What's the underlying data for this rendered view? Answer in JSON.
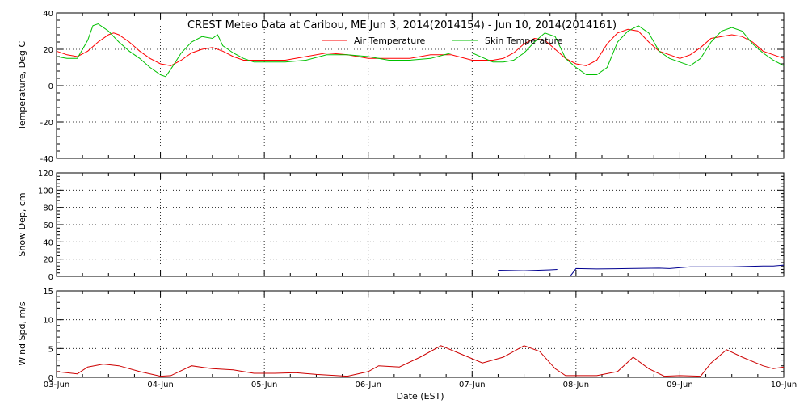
{
  "title": "CREST Meteo Data at Caribou, ME   Jun  3, 2014(2014154) - Jun 10, 2014(2014161)",
  "xlabel": "Date (EST)",
  "x_ticks": [
    "03-Jun",
    "04-Jun",
    "05-Jun",
    "06-Jun",
    "07-Jun",
    "08-Jun",
    "09-Jun",
    "10-Jun"
  ],
  "colors": {
    "air": "#ff0000",
    "skin": "#00c000",
    "snow": "#000090",
    "wind": "#cc0000",
    "axes": "#000000"
  },
  "chart_data": [
    {
      "type": "line",
      "ylabel": "Temperature, Deg C",
      "ylim": [
        -40,
        40
      ],
      "yticks": [
        -40,
        -20,
        0,
        20,
        40
      ],
      "xlim": [
        0,
        7
      ],
      "x_unit": "days since 03-Jun",
      "grid": true,
      "legend_position": "top-right",
      "series": [
        {
          "name": "Air Temperature",
          "color": "#ff0000",
          "x": [
            0,
            0.1,
            0.2,
            0.3,
            0.4,
            0.5,
            0.55,
            0.6,
            0.7,
            0.8,
            0.9,
            1.0,
            1.1,
            1.2,
            1.3,
            1.4,
            1.5,
            1.6,
            1.7,
            1.8,
            1.9,
            2.0,
            2.2,
            2.4,
            2.6,
            2.8,
            3.0,
            3.2,
            3.4,
            3.6,
            3.8,
            4.0,
            4.2,
            4.3,
            4.4,
            4.5,
            4.6,
            4.7,
            4.8,
            4.9,
            5.0,
            5.1,
            5.2,
            5.3,
            5.4,
            5.5,
            5.6,
            5.7,
            5.8,
            5.9,
            6.0,
            6.1,
            6.2,
            6.3,
            6.4,
            6.5,
            6.6,
            6.7,
            6.8,
            6.9,
            7.0
          ],
          "y": [
            19,
            17,
            16,
            19,
            24,
            28,
            29,
            28,
            24,
            19,
            15,
            12,
            11,
            14,
            18,
            20,
            21,
            19,
            16,
            14,
            14,
            14,
            14,
            16,
            18,
            17,
            15,
            15,
            15,
            17,
            17,
            14,
            14,
            15,
            18,
            23,
            26,
            25,
            20,
            15,
            12,
            11,
            14,
            23,
            29,
            31,
            30,
            24,
            19,
            17,
            15,
            17,
            21,
            26,
            27,
            28,
            27,
            24,
            19,
            17,
            15
          ]
        },
        {
          "name": "Skin Temperature",
          "color": "#00c000",
          "x": [
            0,
            0.1,
            0.2,
            0.3,
            0.35,
            0.4,
            0.5,
            0.55,
            0.6,
            0.7,
            0.8,
            0.9,
            1.0,
            1.05,
            1.1,
            1.2,
            1.3,
            1.4,
            1.5,
            1.55,
            1.6,
            1.7,
            1.8,
            1.9,
            2.0,
            2.2,
            2.4,
            2.6,
            2.8,
            3.0,
            3.2,
            3.4,
            3.6,
            3.8,
            4.0,
            4.2,
            4.3,
            4.4,
            4.5,
            4.6,
            4.7,
            4.8,
            4.9,
            5.0,
            5.1,
            5.2,
            5.3,
            5.4,
            5.5,
            5.6,
            5.7,
            5.8,
            5.9,
            6.0,
            6.1,
            6.2,
            6.3,
            6.4,
            6.5,
            6.6,
            6.7,
            6.8,
            6.9,
            7.0
          ],
          "y": [
            16,
            15,
            15,
            25,
            33,
            34,
            30,
            27,
            24,
            19,
            15,
            10,
            6,
            5,
            9,
            18,
            24,
            27,
            26,
            28,
            22,
            18,
            15,
            13,
            13,
            13,
            14,
            17,
            17,
            16,
            14,
            14,
            15,
            18,
            18,
            13,
            13,
            14,
            18,
            24,
            29,
            27,
            15,
            10,
            6,
            6,
            10,
            24,
            30,
            33,
            29,
            19,
            15,
            13,
            11,
            15,
            24,
            30,
            32,
            30,
            23,
            18,
            14,
            11
          ]
        }
      ]
    },
    {
      "type": "line",
      "ylabel": "Snow Dep, cm",
      "ylim": [
        0,
        120
      ],
      "yticks": [
        0,
        20,
        40,
        60,
        80,
        100,
        120
      ],
      "xlim": [
        0,
        7
      ],
      "x_unit": "days since 03-Jun",
      "grid": true,
      "series": [
        {
          "color": "#000090",
          "segments": [
            {
              "x": [
                0.37,
                0.42
              ],
              "y": [
                0.5,
                0.5
              ]
            },
            {
              "x": [
                1.97,
                2.03
              ],
              "y": [
                0.5,
                0.5
              ]
            },
            {
              "x": [
                2.92,
                2.98
              ],
              "y": [
                0.5,
                0.5
              ]
            },
            {
              "x": [
                4.25,
                4.5,
                4.75,
                4.82
              ],
              "y": [
                7,
                6.5,
                7.5,
                8
              ]
            },
            {
              "x": [
                4.95,
                5.0,
                5.2,
                5.5,
                5.8,
                5.9,
                6.1,
                6.5,
                6.8,
                6.9,
                7.0
              ],
              "y": [
                1,
                9,
                8.5,
                9,
                9.5,
                9,
                11,
                11,
                12,
                12,
                13
              ]
            }
          ]
        }
      ]
    },
    {
      "type": "line",
      "ylabel": "Wind Spd, m/s",
      "ylim": [
        0,
        15
      ],
      "yticks": [
        0,
        5,
        10,
        15
      ],
      "xlim": [
        0,
        7
      ],
      "x_unit": "days since 03-Jun",
      "grid": true,
      "series": [
        {
          "color": "#cc0000",
          "x": [
            0,
            0.2,
            0.3,
            0.45,
            0.6,
            0.8,
            1.0,
            1.1,
            1.3,
            1.5,
            1.7,
            1.9,
            2.1,
            2.3,
            2.5,
            2.8,
            3.0,
            3.1,
            3.3,
            3.5,
            3.7,
            3.9,
            4.1,
            4.3,
            4.5,
            4.65,
            4.8,
            4.9,
            5.0,
            5.2,
            5.4,
            5.55,
            5.7,
            5.85,
            6.0,
            6.2,
            6.3,
            6.45,
            6.6,
            6.8,
            6.9,
            7.0
          ],
          "y": [
            1.0,
            0.6,
            1.8,
            2.3,
            2.0,
            1.0,
            0.2,
            0.3,
            2.0,
            1.5,
            1.3,
            0.7,
            0.7,
            0.8,
            0.5,
            0.2,
            1.0,
            2.0,
            1.8,
            3.5,
            5.5,
            4.0,
            2.5,
            3.5,
            5.5,
            4.5,
            1.5,
            0.3,
            0.3,
            0.3,
            1.0,
            3.5,
            1.5,
            0.2,
            0.3,
            0.2,
            2.5,
            4.8,
            3.5,
            2.0,
            1.5,
            1.8
          ]
        }
      ]
    }
  ]
}
